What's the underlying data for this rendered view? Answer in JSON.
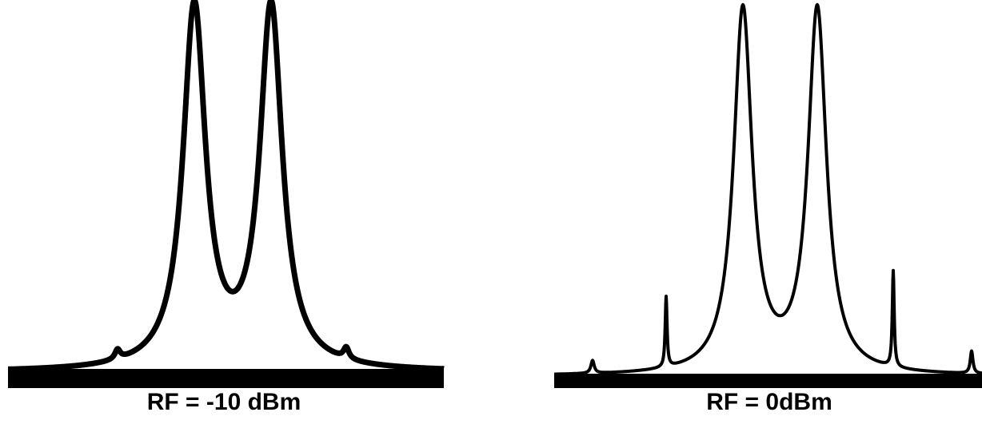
{
  "panels": [
    {
      "caption": "RF = -10 dBm"
    },
    {
      "caption": "RF = 0dBm"
    }
  ]
}
